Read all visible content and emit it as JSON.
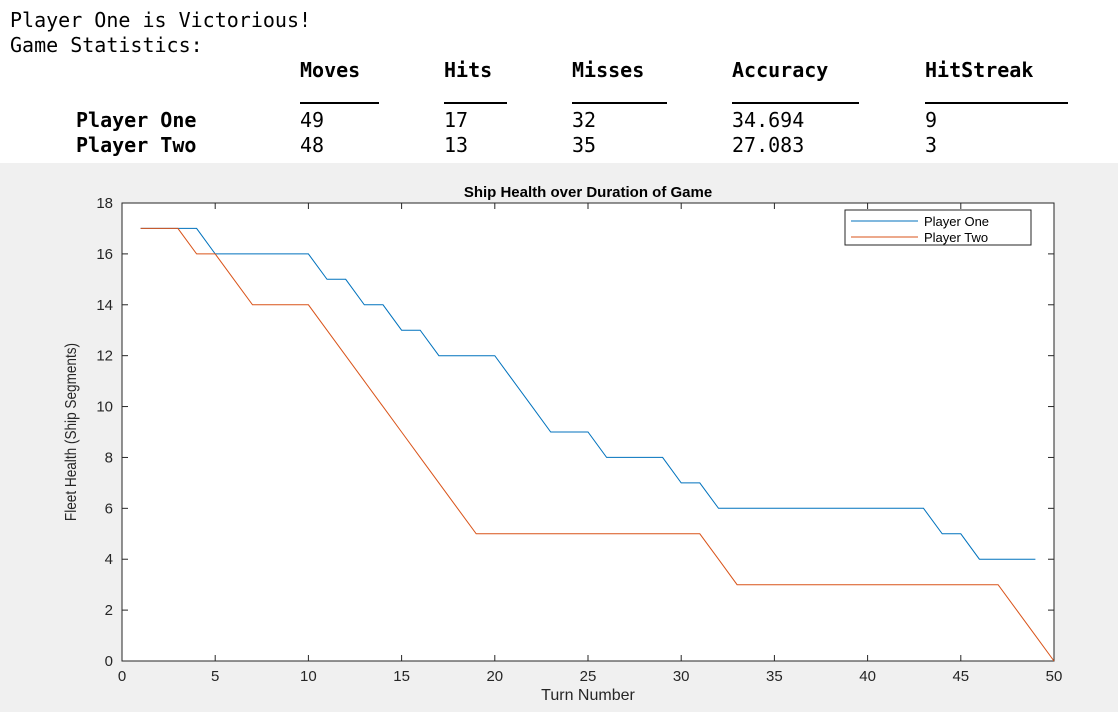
{
  "console": {
    "line1": "Player One is Victorious!",
    "line2": "Game Statistics:",
    "table": {
      "columns": [
        "Moves",
        "Hits",
        "Misses",
        "Accuracy",
        "HitStreak"
      ],
      "rows": [
        {
          "name": "Player One",
          "values": [
            "49",
            "17",
            "32",
            "34.694",
            "9"
          ]
        },
        {
          "name": "Player Two",
          "values": [
            "48",
            "13",
            "35",
            "27.083",
            "3"
          ]
        }
      ]
    }
  },
  "chart_data": {
    "type": "line",
    "title": "Ship Health over Duration of Game",
    "xlabel": "Turn Number",
    "ylabel": "Fleet Health (Ship Segments)",
    "xlim": [
      0,
      50
    ],
    "ylim": [
      0,
      18
    ],
    "xticks": [
      "0",
      "5",
      "10",
      "15",
      "20",
      "25",
      "30",
      "35",
      "40",
      "45",
      "50"
    ],
    "yticks": [
      "0",
      "2",
      "4",
      "6",
      "8",
      "10",
      "12",
      "14",
      "16",
      "18"
    ],
    "grid": false,
    "legend_position": "top-right",
    "series": [
      {
        "name": "Player One",
        "color": "#0072BD",
        "x": [
          1,
          2,
          3,
          4,
          5,
          6,
          7,
          8,
          9,
          10,
          11,
          12,
          13,
          14,
          15,
          16,
          17,
          18,
          19,
          20,
          21,
          22,
          23,
          24,
          25,
          26,
          27,
          28,
          29,
          30,
          31,
          32,
          33,
          34,
          35,
          36,
          37,
          38,
          39,
          40,
          41,
          42,
          43,
          44,
          45,
          46,
          47,
          48,
          49
        ],
        "y": [
          17,
          17,
          17,
          17,
          16,
          16,
          16,
          16,
          16,
          16,
          15,
          15,
          14,
          14,
          13,
          13,
          12,
          12,
          12,
          12,
          11,
          10,
          9,
          9,
          9,
          8,
          8,
          8,
          8,
          7,
          7,
          6,
          6,
          6,
          6,
          6,
          6,
          6,
          6,
          6,
          6,
          6,
          6,
          5,
          5,
          4,
          4,
          4,
          4
        ]
      },
      {
        "name": "Player Two",
        "color": "#D95319",
        "x": [
          1,
          2,
          3,
          4,
          5,
          6,
          7,
          8,
          9,
          10,
          11,
          12,
          13,
          14,
          15,
          16,
          17,
          18,
          19,
          20,
          21,
          22,
          23,
          24,
          25,
          26,
          27,
          28,
          29,
          30,
          31,
          32,
          33,
          34,
          35,
          36,
          37,
          38,
          39,
          40,
          41,
          42,
          43,
          44,
          45,
          46,
          47,
          48,
          49,
          50
        ],
        "y": [
          17,
          17,
          17,
          16,
          16,
          15,
          14,
          14,
          14,
          14,
          13,
          12,
          11,
          10,
          9,
          8,
          7,
          6,
          5,
          5,
          5,
          5,
          5,
          5,
          5,
          5,
          5,
          5,
          5,
          5,
          5,
          4,
          3,
          3,
          3,
          3,
          3,
          3,
          3,
          3,
          3,
          3,
          3,
          3,
          3,
          3,
          3,
          2,
          1,
          0
        ]
      }
    ]
  }
}
